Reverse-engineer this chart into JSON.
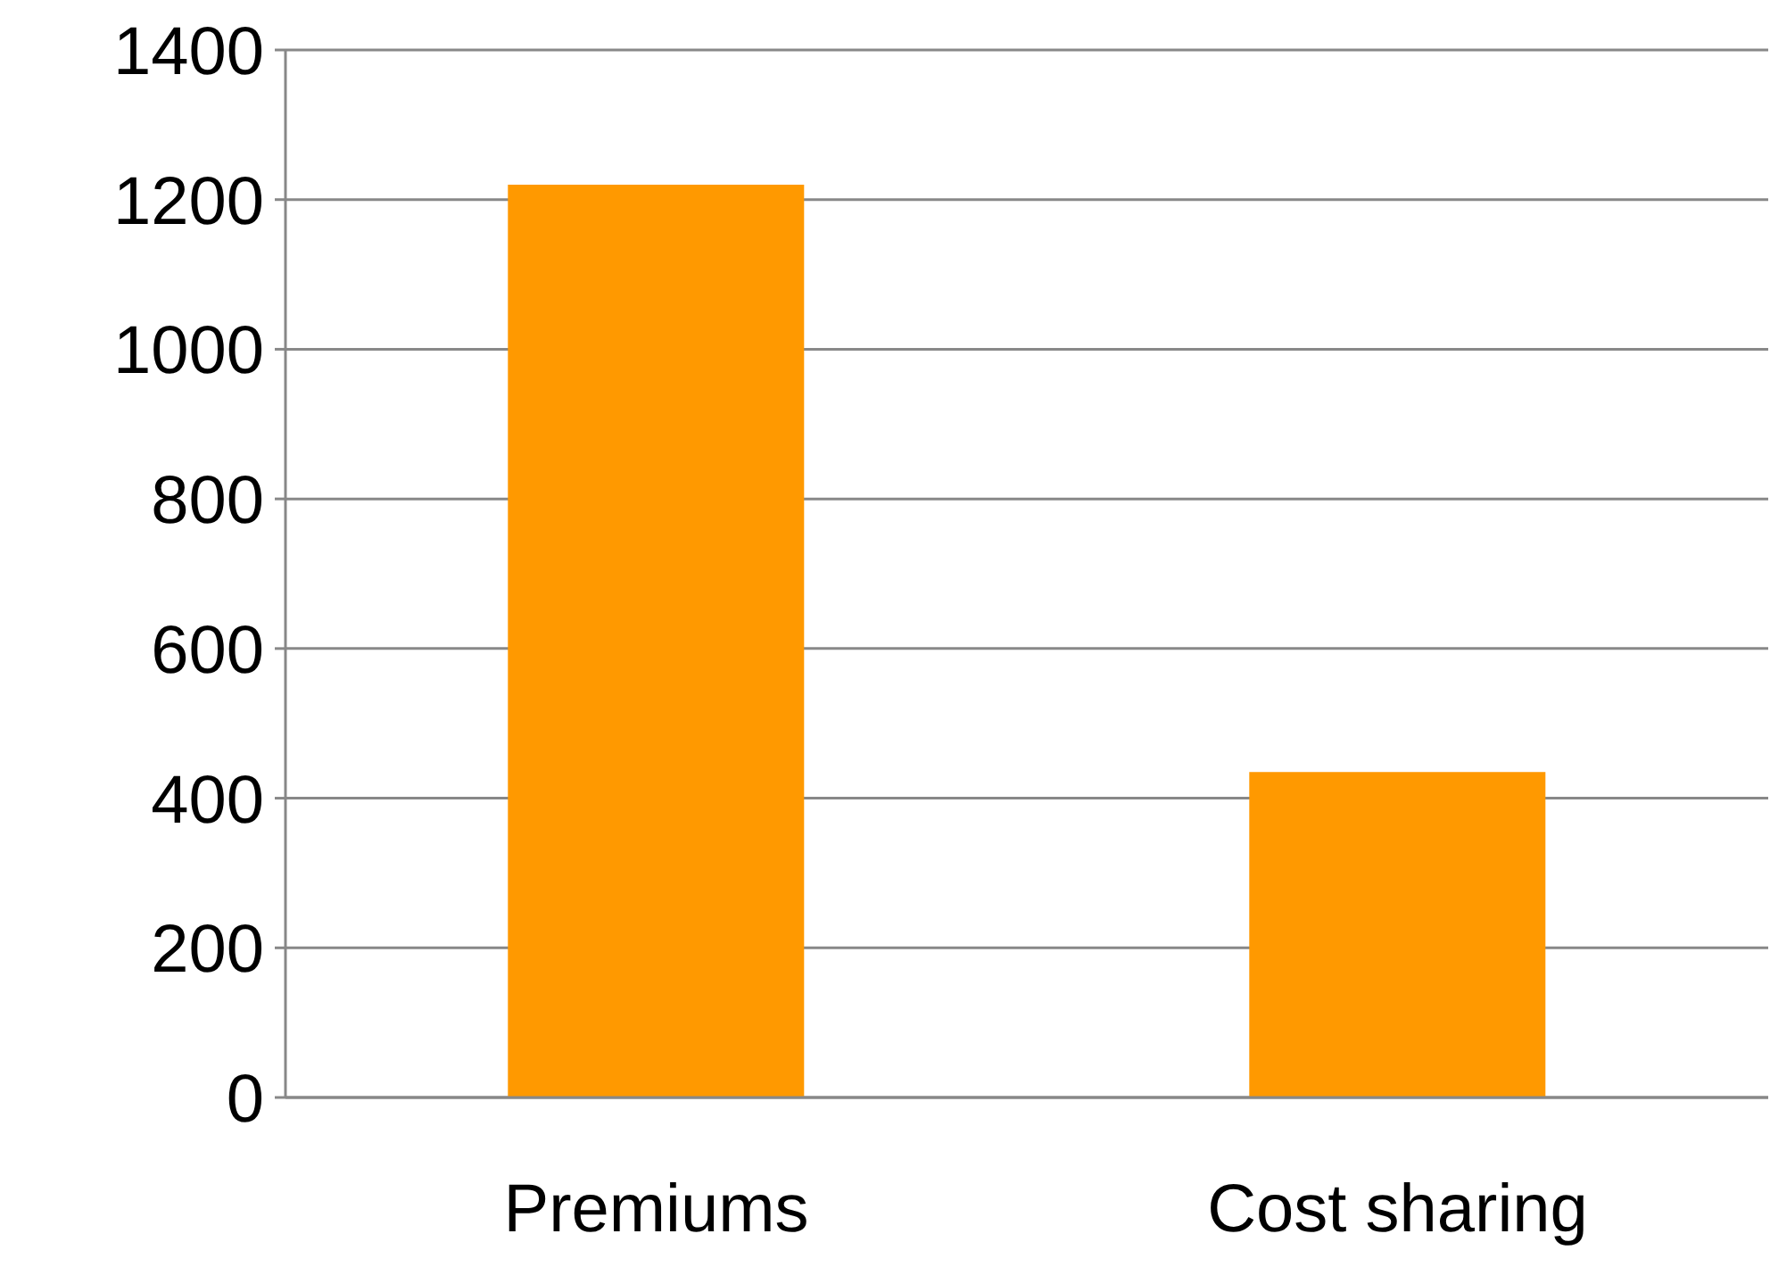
{
  "chart_data": {
    "type": "bar",
    "categories": [
      "Premiums",
      "Cost sharing"
    ],
    "values": [
      1220,
      435
    ],
    "color": "#ff9900",
    "ylim": [
      0,
      1400
    ],
    "yticks": [
      0,
      200,
      400,
      600,
      800,
      1000,
      1200,
      1400
    ],
    "grid": "y"
  }
}
